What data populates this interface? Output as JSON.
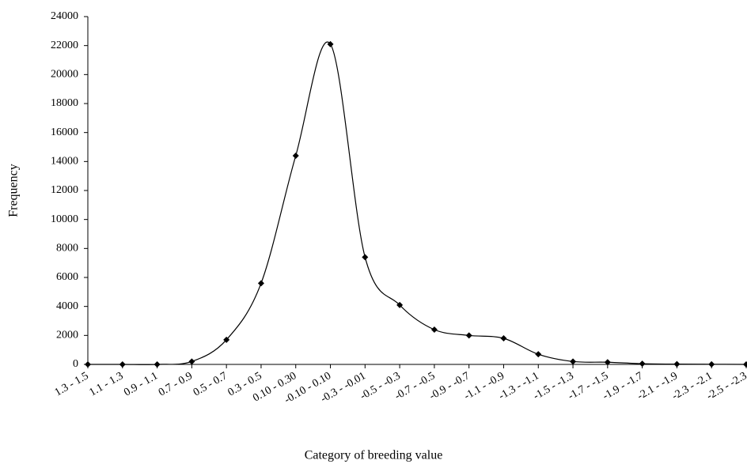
{
  "chart_data": {
    "type": "line",
    "x_label": "Category of breeding value",
    "y_label": "Frequency",
    "categories": [
      "1.3 - 1.5",
      "1.1 - 1.3",
      "0.9 - 1.1",
      "0.7 - 0.9",
      "0.5 - 0.7",
      "0.3 - 0.5",
      "0.10 - 0.30",
      "-0.10 - 0.10",
      "-0.3 - -0.01",
      "-0.5 - -0.3",
      "-0.7 - -0.5",
      "-0.9 - -0.7",
      "-1.1 - -0.9",
      "-1.3 - -1.1",
      "-1.5 - -1.3",
      "-1.7 - -1.5",
      "-1.9 - -1.7",
      "-2.1 - -1.9",
      "-2.3 - -2.1",
      "-2.5 - -2.3"
    ],
    "values": [
      0,
      0,
      0,
      200,
      1700,
      5600,
      14400,
      22100,
      7400,
      4100,
      2400,
      2000,
      1800,
      700,
      200,
      150,
      50,
      20,
      10,
      0
    ],
    "color": "#000000",
    "smooth": true,
    "ylim": [
      0,
      24000
    ],
    "yticks": [
      0,
      2000,
      4000,
      6000,
      8000,
      10000,
      12000,
      14000,
      16000,
      18000,
      20000,
      22000,
      24000
    ]
  }
}
